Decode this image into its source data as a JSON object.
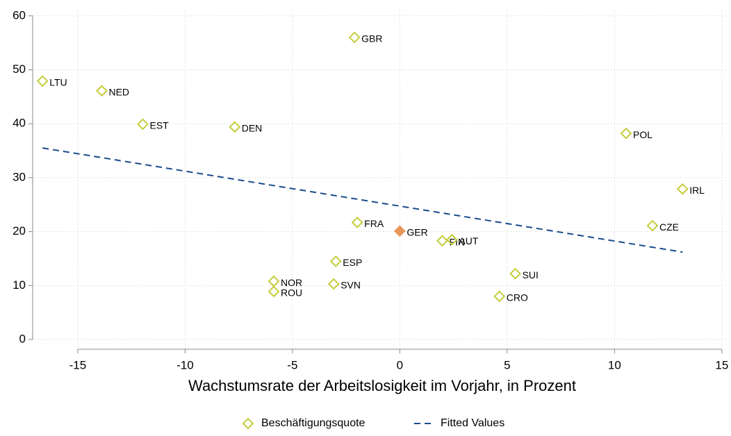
{
  "chart_data": {
    "type": "scatter",
    "x_label": "Wachstumsrate der Arbeitslosigkeit im Vorjahr, in Prozent",
    "xlim": [
      -17.1,
      15.2
    ],
    "ylim": [
      -1.8,
      61
    ],
    "xticks": [
      -15,
      -10,
      -5,
      0,
      5,
      10,
      15
    ],
    "yticks": [
      0,
      10,
      20,
      30,
      40,
      50,
      60
    ],
    "grid": true,
    "legend": "bottom",
    "series": [
      {
        "name": "Beschäftigungsquote",
        "color": "#c5cc3a",
        "labels": [
          "LTU",
          "NED",
          "EST",
          "DEN",
          "GBR",
          "FRA",
          "GER",
          "FIN",
          "AUT",
          "ESP",
          "NOR",
          "ROU",
          "SVN",
          "SUI",
          "CRO",
          "POL",
          "CZE",
          "IRL"
        ],
        "x": [
          -16.64,
          -13.88,
          -11.97,
          -7.69,
          -2.11,
          -1.98,
          0,
          1.98,
          2.43,
          -2.98,
          -5.87,
          -5.87,
          -3.08,
          5.38,
          4.64,
          10.54,
          11.77,
          13.17
        ],
        "values": [
          47.9,
          46.1,
          39.9,
          39.4,
          56.0,
          21.7,
          20.1,
          18.3,
          18.5,
          14.5,
          10.8,
          8.9,
          10.3,
          12.2,
          8.0,
          38.2,
          21.1,
          27.9
        ],
        "colors": [
          "#c5cc3a",
          "#c5cc3a",
          "#c5cc3a",
          "#c5cc3a",
          "#c5cc3a",
          "#c5cc3a",
          "#e8975a",
          "#c5cc3a",
          "#c5cc3a",
          "#c5cc3a",
          "#c5cc3a",
          "#c5cc3a",
          "#c5cc3a",
          "#c5cc3a",
          "#c5cc3a",
          "#c5cc3a",
          "#c5cc3a",
          "#c5cc3a"
        ]
      },
      {
        "name": "Fitted Values",
        "color": "#1a4b8c",
        "style": "dashed",
        "x": [
          -16.64,
          13.17
        ],
        "values": [
          35.5,
          16.2
        ]
      }
    ]
  }
}
